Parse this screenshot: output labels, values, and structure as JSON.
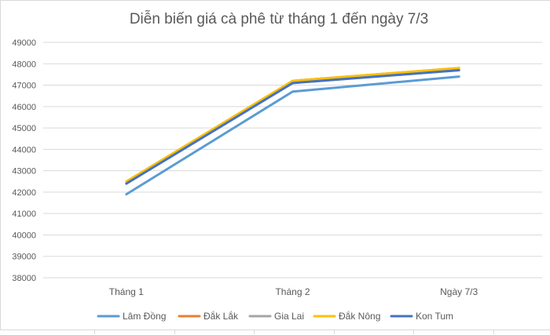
{
  "chart_data": {
    "type": "line",
    "title": "Diễn biến giá cà phê từ tháng 1 đến ngày 7/3",
    "xlabel": "",
    "ylabel": "",
    "categories": [
      "Tháng 1",
      "Tháng 2",
      "Ngày 7/3"
    ],
    "ylim": [
      38000,
      49000
    ],
    "y_ticks": [
      38000,
      39000,
      40000,
      41000,
      42000,
      43000,
      44000,
      45000,
      46000,
      47000,
      48000,
      49000
    ],
    "grid": true,
    "legend_position": "bottom",
    "series": [
      {
        "name": "Lâm Đồng",
        "color": "#5b9bd5",
        "values": [
          41900,
          46700,
          47400
        ]
      },
      {
        "name": "Đắk Lắk",
        "color": "#ed7d31",
        "values": [
          42400,
          47200,
          47800
        ]
      },
      {
        "name": "Gia Lai",
        "color": "#a5a5a5",
        "values": [
          42400,
          47100,
          47700
        ]
      },
      {
        "name": "Đắk Nông",
        "color": "#ffc000",
        "values": [
          42500,
          47200,
          47800
        ]
      },
      {
        "name": "Kon Tum",
        "color": "#4472c4",
        "values": [
          42400,
          47100,
          47700
        ]
      }
    ]
  }
}
